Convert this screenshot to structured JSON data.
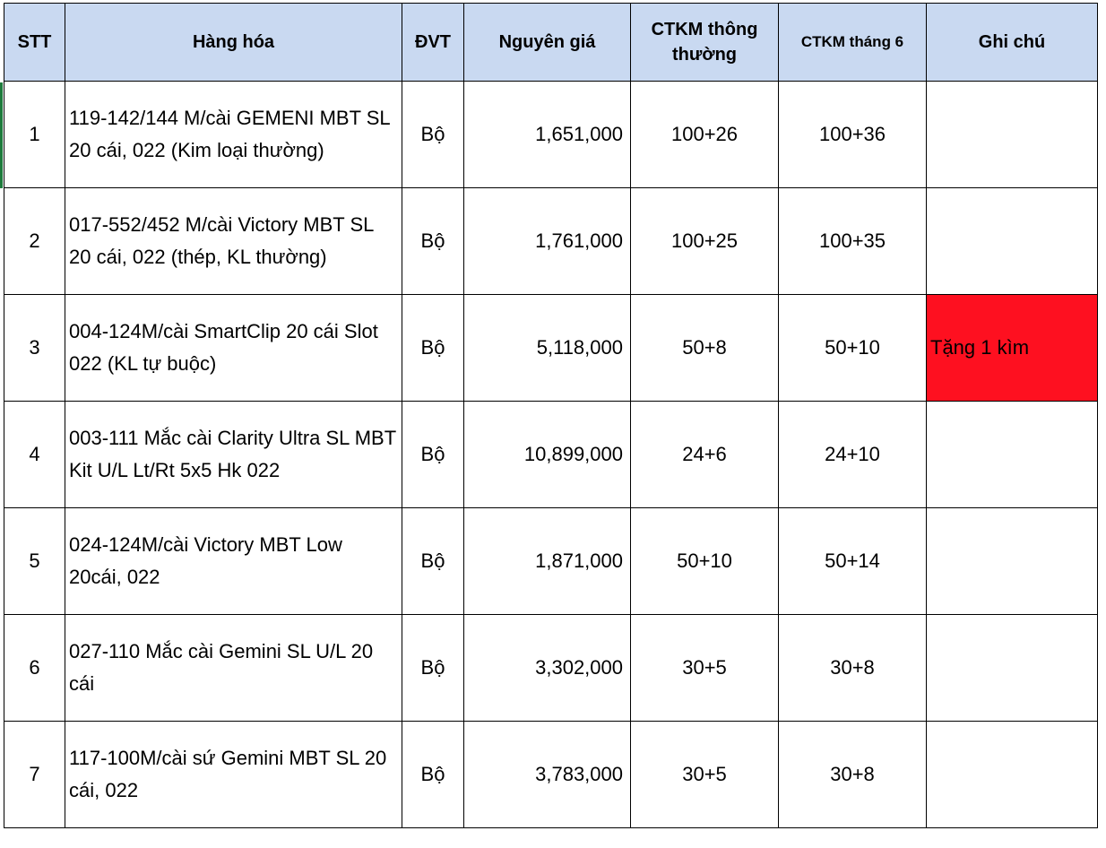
{
  "sheet": {
    "headers": {
      "stt": "STT",
      "item": "Hàng hóa",
      "unit": "ĐVT",
      "price": "Nguyên giá",
      "promo_regular": "CTKM thông thường",
      "promo_june": "CTKM tháng 6",
      "note": "Ghi chú"
    },
    "rows": [
      {
        "stt": "1",
        "item": "119-142/144 M/cài GEMENI MBT SL 20 cái, 022 (Kim loại thường)",
        "unit": "Bộ",
        "price": "1,651,000",
        "promo_regular": "100+26",
        "promo_june": "100+36",
        "note": ""
      },
      {
        "stt": "2",
        "item": "017-552/452 M/cài Victory MBT SL 20 cái, 022 (thép, KL thường)",
        "unit": "Bộ",
        "price": "1,761,000",
        "promo_regular": "100+25",
        "promo_june": "100+35",
        "note": ""
      },
      {
        "stt": "3",
        "item": "004-124M/cài SmartClip 20 cái Slot 022 (KL tự buộc)",
        "unit": "Bộ",
        "price": "5,118,000",
        "promo_regular": "50+8",
        "promo_june": "50+10",
        "note": "Tặng 1 kìm"
      },
      {
        "stt": "4",
        "item": "003-111 Mắc cài Clarity Ultra SL MBT Kit  U/L Lt/Rt 5x5 Hk 022",
        "unit": "Bộ",
        "price": "10,899,000",
        "promo_regular": "24+6",
        "promo_june": "24+10",
        "note": ""
      },
      {
        "stt": "5",
        "item": "024-124M/cài Victory MBT Low 20cái, 022",
        "unit": "Bộ",
        "price": "1,871,000",
        "promo_regular": "50+10",
        "promo_june": "50+14",
        "note": ""
      },
      {
        "stt": "6",
        "item": "027-110 Mắc cài Gemini SL U/L 20 cái",
        "unit": "Bộ",
        "price": "3,302,000",
        "promo_regular": "30+5",
        "promo_june": "30+8",
        "note": ""
      },
      {
        "stt": "7",
        "item": "117-100M/cài sứ Gemini MBT SL 20 cái, 022",
        "unit": "Bộ",
        "price": "3,783,000",
        "promo_regular": "30+5",
        "promo_june": "30+8",
        "note": ""
      }
    ],
    "colors": {
      "header_bg": "#c9d9f1",
      "highlight_bg": "#fe1020",
      "edge_marker": "#1e7b3c"
    }
  }
}
